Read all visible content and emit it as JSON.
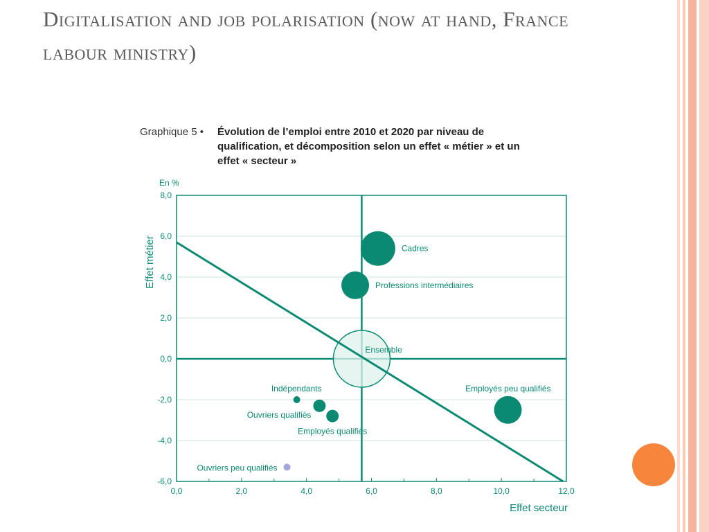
{
  "slide": {
    "title": "Digitalisation and job polarisation (now at hand, France labour ministry)"
  },
  "chart_header": {
    "prefix": "Graphique 5 •",
    "title": "Évolution de l’emploi entre 2010 et 2020 par niveau de qualification, et décomposition selon un effet « métier » et un effet « secteur »"
  },
  "colors": {
    "teal": "#0b8a73",
    "light_teal_fill": "#dff1ec",
    "grid": "#cfe3dd",
    "lavender": "#a3a6d8",
    "accent_orange": "#f7863c",
    "title_gray": "#5b5b5b"
  },
  "chart_data": {
    "type": "scatter",
    "bubble": true,
    "unit_label": "En %",
    "xlabel": "Effet secteur",
    "ylabel": "Effet métier",
    "xlim": [
      0,
      12
    ],
    "ylim": [
      -6,
      8
    ],
    "x_ticks": [
      "0,0",
      "2,0",
      "4,0",
      "6,0",
      "8,0",
      "10,0",
      "12,0"
    ],
    "y_ticks": [
      "8,0",
      "6,0",
      "4,0",
      "2,0",
      "0,0",
      "-2,0",
      "-4,0",
      "-6,0"
    ],
    "grid": true,
    "reference_lines": {
      "vertical_x": 5.7,
      "horizontal_y": 0.0,
      "diagonal": {
        "from": [
          0,
          5.7
        ],
        "to": [
          11.9,
          -6.0
        ]
      }
    },
    "points": [
      {
        "label": "Cadres",
        "x": 6.2,
        "y": 5.4,
        "size": "large",
        "style": "solid"
      },
      {
        "label": "Professions intermédiaires",
        "x": 5.5,
        "y": 3.6,
        "size": "medium",
        "style": "solid"
      },
      {
        "label": "Ensemble",
        "x": 5.7,
        "y": 0.0,
        "size": "xlarge",
        "style": "outline"
      },
      {
        "label": "Employés peu qualifiés",
        "x": 10.2,
        "y": -2.5,
        "size": "medium",
        "style": "solid"
      },
      {
        "label": "Indépendants",
        "x": 3.7,
        "y": -2.0,
        "size": "tiny",
        "style": "solid"
      },
      {
        "label": "Ouvriers qualifiés",
        "x": 4.4,
        "y": -2.3,
        "size": "small",
        "style": "solid"
      },
      {
        "label": "Employés qualifiés",
        "x": 4.8,
        "y": -2.8,
        "size": "small",
        "style": "solid"
      },
      {
        "label": "Ouvriers peu qualifiés",
        "x": 3.4,
        "y": -5.3,
        "size": "tiny",
        "style": "lavender"
      }
    ]
  }
}
